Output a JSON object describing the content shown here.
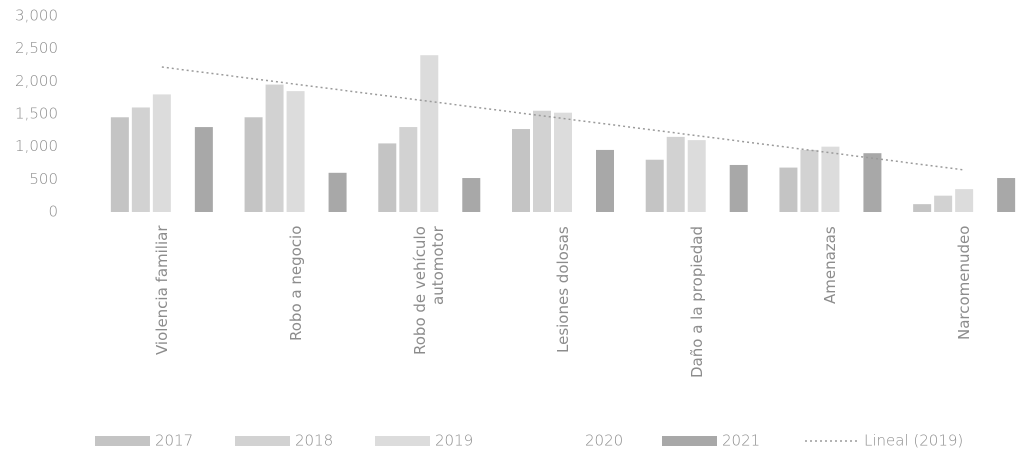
{
  "chart_data": {
    "type": "bar",
    "categories": [
      "Violencia familiar",
      "Robo a negocio",
      "Robo de vehículo automotor",
      "Lesiones dolosas",
      "Daño a la propiedad",
      "Amenazas",
      "Narcomenudeo"
    ],
    "series": [
      {
        "name": "2017",
        "color": "#c4c4c4",
        "values": [
          1450,
          1450,
          1050,
          1270,
          800,
          680,
          120
        ]
      },
      {
        "name": "2018",
        "color": "#d2d2d2",
        "values": [
          1600,
          1950,
          1300,
          1550,
          1150,
          950,
          250
        ]
      },
      {
        "name": "2019",
        "color": "#dcdcdc",
        "values": [
          1800,
          1850,
          2400,
          1520,
          1100,
          1000,
          350
        ]
      },
      {
        "name": "2020",
        "color": "#ffffff",
        "values": [
          null,
          null,
          null,
          null,
          null,
          null,
          null
        ]
      },
      {
        "name": "2021",
        "color": "#a8a8a8",
        "values": [
          1300,
          600,
          520,
          950,
          720,
          900,
          520
        ]
      }
    ],
    "trendline": {
      "name": "Lineal (2019)",
      "series": 2,
      "color": "#9a9a9a"
    },
    "ylim": [
      0,
      3000
    ],
    "yticks": [
      0,
      500,
      {
        "value": 1000,
        "label": "1,000"
      },
      {
        "value": 1500,
        "label": "1,500"
      },
      {
        "value": 2000,
        "label": "2,000"
      },
      {
        "value": 2500,
        "label": "2,500"
      },
      {
        "value": 3000,
        "label": "3,000"
      }
    ],
    "grid": false
  }
}
